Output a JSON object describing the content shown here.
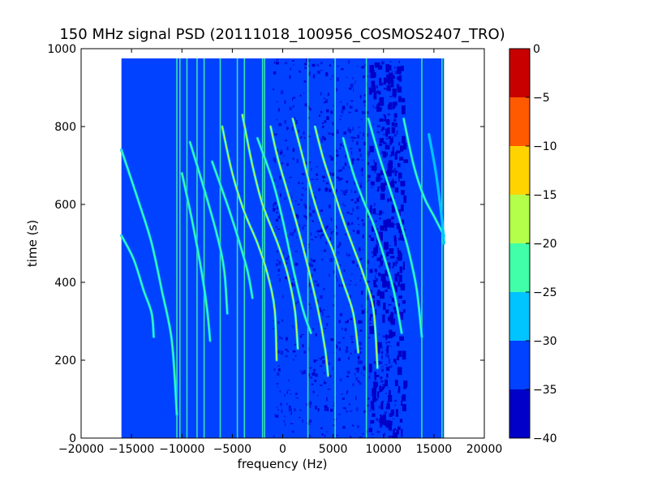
{
  "chart_data": {
    "type": "heatmap",
    "title": "150 MHz signal PSD (20111018_100956_COSMOS2407_TRO)",
    "xlabel": "frequency (Hz)",
    "ylabel": "time (s)",
    "xlim": [
      -20000,
      20000
    ],
    "ylim": [
      0,
      1000
    ],
    "x_ticks": [
      -20000,
      -15000,
      -10000,
      -5000,
      0,
      5000,
      10000,
      15000,
      20000
    ],
    "y_ticks": [
      0,
      200,
      400,
      600,
      800,
      1000
    ],
    "data_extent": {
      "x": [
        -16000,
        16000
      ],
      "y": [
        0,
        975
      ]
    },
    "colorbar": {
      "levels": [
        -40,
        -35,
        -30,
        -25,
        -20,
        -15,
        -10,
        -5,
        0
      ],
      "tick_labels": [
        "−40",
        "−35",
        "−30",
        "−25",
        "−20",
        "−15",
        "−10",
        "−5",
        "0"
      ],
      "colors": [
        "#0000c8",
        "#0042ff",
        "#00c4ff",
        "#40ffa8",
        "#b4ff4a",
        "#ffd300",
        "#ff5a00",
        "#c80000"
      ]
    },
    "background_level_db": -33,
    "vertical_lines_hz": [
      -10500,
      -10200,
      -9500,
      -8500,
      -7800,
      -6200,
      -4500,
      -3800,
      -2000,
      -1800,
      2500,
      5200,
      8300,
      13800,
      15800
    ],
    "traces": [
      {
        "points": [
          [
            -16000,
            740
          ],
          [
            -14200,
            600
          ],
          [
            -13000,
            500
          ],
          [
            -12000,
            380
          ],
          [
            -11000,
            250
          ],
          [
            -10500,
            60
          ]
        ],
        "level_db": -24
      },
      {
        "points": [
          [
            -16000,
            520
          ],
          [
            -14800,
            460
          ],
          [
            -13800,
            380
          ],
          [
            -13000,
            320
          ],
          [
            -12800,
            260
          ]
        ],
        "level_db": -24
      },
      {
        "points": [
          [
            -10000,
            680
          ],
          [
            -9000,
            560
          ],
          [
            -8000,
            420
          ],
          [
            -7500,
            330
          ],
          [
            -7200,
            250
          ]
        ],
        "level_db": -25
      },
      {
        "points": [
          [
            -9200,
            760
          ],
          [
            -7800,
            640
          ],
          [
            -6500,
            520
          ],
          [
            -5800,
            430
          ],
          [
            -5500,
            320
          ]
        ],
        "level_db": -25
      },
      {
        "points": [
          [
            -7000,
            710
          ],
          [
            -5500,
            600
          ],
          [
            -4500,
            520
          ],
          [
            -3500,
            430
          ],
          [
            -3000,
            360
          ]
        ],
        "level_db": -25
      },
      {
        "points": [
          [
            -6000,
            800
          ],
          [
            -5000,
            680
          ],
          [
            -3800,
            580
          ],
          [
            -2500,
            500
          ],
          [
            -1500,
            420
          ],
          [
            -800,
            330
          ],
          [
            -600,
            200
          ]
        ],
        "level_db": -20
      },
      {
        "points": [
          [
            -4000,
            830
          ],
          [
            -3000,
            700
          ],
          [
            -2000,
            600
          ],
          [
            -500,
            500
          ],
          [
            500,
            420
          ],
          [
            1200,
            330
          ],
          [
            1500,
            230
          ]
        ],
        "level_db": -20
      },
      {
        "points": [
          [
            -1200,
            800
          ],
          [
            -500,
            720
          ],
          [
            500,
            630
          ],
          [
            1500,
            540
          ],
          [
            2500,
            440
          ],
          [
            3500,
            330
          ],
          [
            4200,
            230
          ],
          [
            4500,
            160
          ]
        ],
        "level_db": -17
      },
      {
        "points": [
          [
            -2500,
            770
          ],
          [
            -1000,
            660
          ],
          [
            0,
            560
          ],
          [
            1000,
            440
          ],
          [
            2000,
            330
          ],
          [
            2800,
            270
          ]
        ],
        "level_db": -22
      },
      {
        "points": [
          [
            1000,
            820
          ],
          [
            2000,
            720
          ],
          [
            3000,
            620
          ],
          [
            4000,
            540
          ],
          [
            5000,
            480
          ],
          [
            6000,
            400
          ],
          [
            7000,
            320
          ],
          [
            7500,
            220
          ]
        ],
        "level_db": -20
      },
      {
        "points": [
          [
            3200,
            800
          ],
          [
            4000,
            720
          ],
          [
            5000,
            640
          ],
          [
            6000,
            560
          ],
          [
            7000,
            490
          ],
          [
            8000,
            420
          ],
          [
            9000,
            330
          ],
          [
            9400,
            180
          ]
        ],
        "level_db": -20
      },
      {
        "points": [
          [
            6000,
            770
          ],
          [
            7000,
            680
          ],
          [
            8000,
            610
          ],
          [
            9000,
            550
          ],
          [
            10000,
            470
          ],
          [
            11000,
            380
          ],
          [
            11800,
            270
          ]
        ],
        "level_db": -24
      },
      {
        "points": [
          [
            8500,
            820
          ],
          [
            9500,
            730
          ],
          [
            10500,
            650
          ],
          [
            11500,
            570
          ],
          [
            12500,
            480
          ],
          [
            13300,
            380
          ],
          [
            13800,
            260
          ]
        ],
        "level_db": -24
      },
      {
        "points": [
          [
            12000,
            820
          ],
          [
            13000,
            700
          ],
          [
            14000,
            620
          ],
          [
            15000,
            570
          ],
          [
            16000,
            520
          ]
        ],
        "level_db": -24
      },
      {
        "points": [
          [
            14500,
            780
          ],
          [
            15200,
            680
          ],
          [
            15800,
            560
          ],
          [
            16000,
            500
          ]
        ],
        "level_db": -26
      }
    ]
  }
}
